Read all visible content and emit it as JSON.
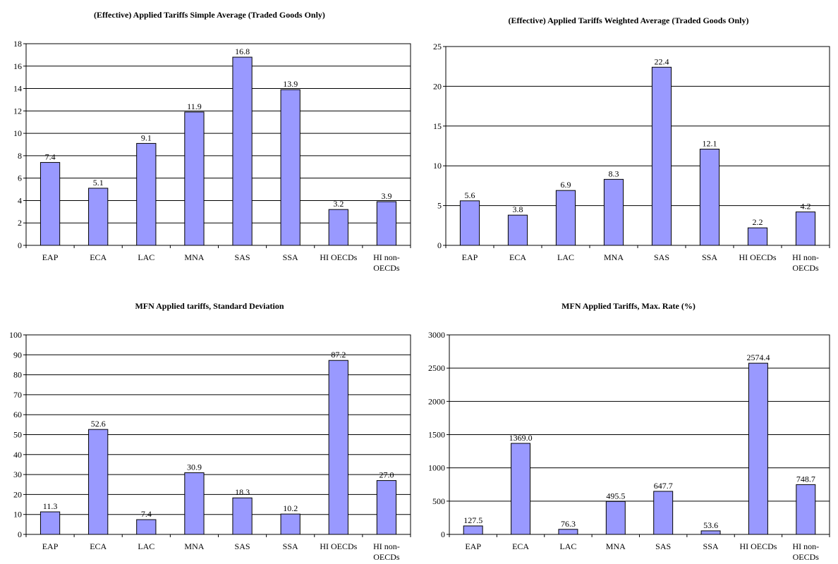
{
  "chart_data": [
    {
      "type": "bar",
      "title": "(Effective) Applied Tariffs Simple Average (Traded Goods Only)",
      "categories": [
        "EAP",
        "ECA",
        "LAC",
        "MNA",
        "SAS",
        "SSA",
        "HI OECDs",
        "HI non-OECDs"
      ],
      "values": [
        7.4,
        5.1,
        9.1,
        11.9,
        16.8,
        13.9,
        3.2,
        3.9
      ],
      "value_labels": [
        "7.4",
        "5.1",
        "9.1",
        "11.9",
        "16.8",
        "13.9",
        "3.2",
        "3.9"
      ],
      "ylim": [
        0,
        18
      ],
      "yticks": [
        0,
        2,
        4,
        6,
        8,
        10,
        12,
        14,
        16,
        18
      ],
      "xlabel": "",
      "ylabel": "",
      "grid": true,
      "legend": "none"
    },
    {
      "type": "bar",
      "title": "(Effective) Applied Tariffs Weighted Average (Traded Goods Only)",
      "categories": [
        "EAP",
        "ECA",
        "LAC",
        "MNA",
        "SAS",
        "SSA",
        "HI OECDs",
        "HI non-OECDs"
      ],
      "values": [
        5.6,
        3.8,
        6.9,
        8.3,
        22.4,
        12.1,
        2.2,
        4.2
      ],
      "value_labels": [
        "5.6",
        "3.8",
        "6.9",
        "8.3",
        "22.4",
        "12.1",
        "2.2",
        "4.2"
      ],
      "ylim": [
        0,
        25
      ],
      "yticks": [
        0,
        5,
        10,
        15,
        20,
        25
      ],
      "xlabel": "",
      "ylabel": "",
      "grid": true,
      "legend": "none"
    },
    {
      "type": "bar",
      "title": "MFN Applied tariffs, Standard Deviation",
      "categories": [
        "EAP",
        "ECA",
        "LAC",
        "MNA",
        "SAS",
        "SSA",
        "HI OECDs",
        "HI non-OECDs"
      ],
      "values": [
        11.3,
        52.6,
        7.4,
        30.9,
        18.3,
        10.2,
        87.2,
        27.0
      ],
      "value_labels": [
        "11.3",
        "52.6",
        "7.4",
        "30.9",
        "18.3",
        "10.2",
        "87.2",
        "27.0"
      ],
      "ylim": [
        0,
        100
      ],
      "yticks": [
        0,
        10,
        20,
        30,
        40,
        50,
        60,
        70,
        80,
        90,
        100
      ],
      "xlabel": "",
      "ylabel": "",
      "grid": true,
      "legend": "none"
    },
    {
      "type": "bar",
      "title": "MFN Applied Tariffs, Max. Rate (%)",
      "categories": [
        "EAP",
        "ECA",
        "LAC",
        "MNA",
        "SAS",
        "SSA",
        "HI OECDs",
        "HI non-OECDs"
      ],
      "values": [
        127.5,
        1369.0,
        76.3,
        495.5,
        647.7,
        53.6,
        2574.4,
        748.7
      ],
      "value_labels": [
        "127.5",
        "1369.0",
        "76.3",
        "495.5",
        "647.7",
        "53.6",
        "2574.4",
        "748.7"
      ],
      "ylim": [
        0,
        3000
      ],
      "yticks": [
        0,
        500,
        1000,
        1500,
        2000,
        2500,
        3000
      ],
      "xlabel": "",
      "ylabel": "",
      "grid": true,
      "legend": "none"
    }
  ],
  "colors": {
    "bar_fill": "#9999ff",
    "bar_stroke": "#000000",
    "grid": "#000000"
  }
}
